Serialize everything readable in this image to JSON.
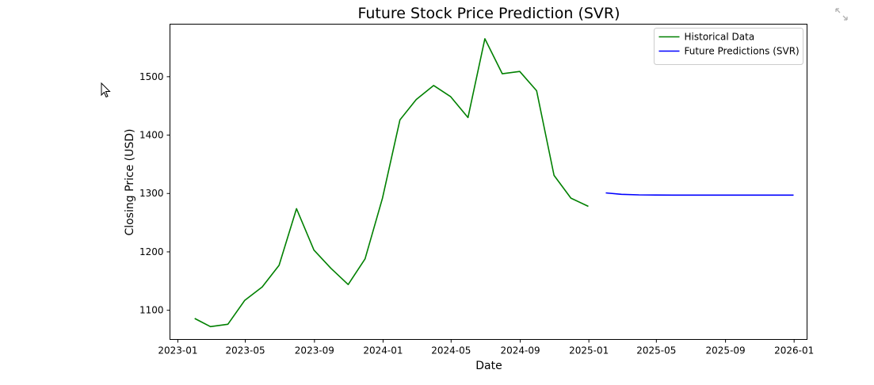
{
  "chart_data": {
    "type": "line",
    "title": "Future Stock Price Prediction (SVR)",
    "xlabel": "Date",
    "ylabel": "Closing Price (USD)",
    "xlim": [
      "2022-12-18",
      "2026-01-24"
    ],
    "ylim": [
      1050,
      1590
    ],
    "x_ticks": [
      "2023-01",
      "2023-05",
      "2023-09",
      "2024-01",
      "2024-05",
      "2024-09",
      "2025-01",
      "2025-05",
      "2025-09",
      "2026-01"
    ],
    "y_ticks": [
      1100,
      1200,
      1300,
      1400,
      1500
    ],
    "grid": false,
    "legend_position": "top-right",
    "series": [
      {
        "name": "Historical Data",
        "color": "#008000",
        "points": [
          [
            "2023-01-31",
            1086
          ],
          [
            "2023-02-28",
            1072
          ],
          [
            "2023-03-31",
            1076
          ],
          [
            "2023-04-30",
            1117
          ],
          [
            "2023-05-31",
            1140
          ],
          [
            "2023-06-30",
            1177
          ],
          [
            "2023-07-31",
            1274
          ],
          [
            "2023-08-31",
            1203
          ],
          [
            "2023-09-30",
            1172
          ],
          [
            "2023-10-31",
            1144
          ],
          [
            "2023-11-30",
            1188
          ],
          [
            "2023-12-31",
            1292
          ],
          [
            "2024-01-31",
            1426
          ],
          [
            "2024-02-29",
            1461
          ],
          [
            "2024-03-31",
            1485
          ],
          [
            "2024-04-30",
            1466
          ],
          [
            "2024-05-31",
            1430
          ],
          [
            "2024-06-30",
            1565
          ],
          [
            "2024-07-31",
            1505
          ],
          [
            "2024-08-31",
            1509
          ],
          [
            "2024-09-30",
            1476
          ],
          [
            "2024-10-31",
            1331
          ],
          [
            "2024-11-30",
            1292
          ],
          [
            "2024-12-31",
            1278
          ]
        ]
      },
      {
        "name": "Future Predictions (SVR)",
        "color": "#0000ff",
        "points": [
          [
            "2025-01-31",
            1301
          ],
          [
            "2025-02-28",
            1298.5
          ],
          [
            "2025-03-31",
            1297.6
          ],
          [
            "2025-04-30",
            1297.3
          ],
          [
            "2025-05-31",
            1297.2
          ],
          [
            "2025-06-30",
            1297.2
          ],
          [
            "2025-07-31",
            1297.2
          ],
          [
            "2025-08-31",
            1297.2
          ],
          [
            "2025-09-30",
            1297.2
          ],
          [
            "2025-10-31",
            1297.2
          ],
          [
            "2025-11-30",
            1297.2
          ],
          [
            "2025-12-31",
            1297.2
          ]
        ]
      }
    ]
  },
  "icons": {
    "expand": "expand-icon",
    "cursor": "mouse-pointer-icon"
  }
}
